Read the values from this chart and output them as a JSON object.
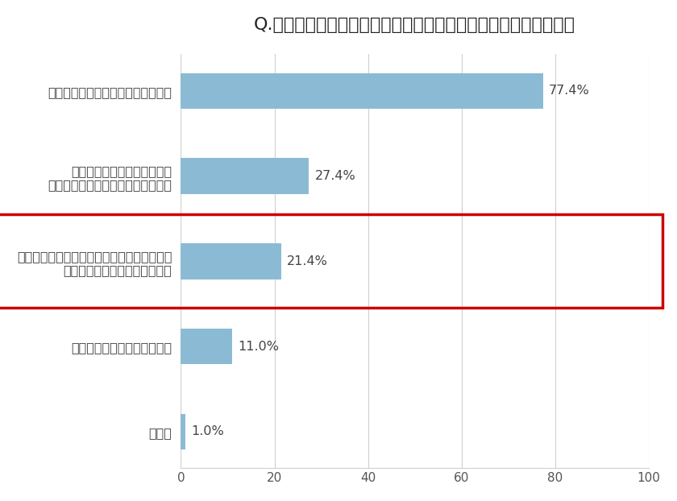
{
  "title": "Q.梅雨時期の食材購入について、あてはまることはありますか。",
  "categories": [
    "お店で購入後、すぐ帰るようにする",
    "購入した食材を持ち帰る際、\n保冷剤（保冷パック）を使っている",
    "雨の日は買い物に行かなくてもいいように、\nストックを多めに準備しておく",
    "生ものを購入する頻度が減る",
    "その他"
  ],
  "values": [
    77.4,
    27.4,
    21.4,
    11.0,
    1.0
  ],
  "labels": [
    "77.4%",
    "27.4%",
    "21.4%",
    "11.0%",
    "1.0%"
  ],
  "bar_color": "#8bbbd4",
  "highlight_index": 2,
  "highlight_color_border": "#cc0000",
  "xlim": [
    0,
    100
  ],
  "xticks": [
    0,
    20,
    40,
    60,
    80,
    100
  ],
  "background_color": "#ffffff",
  "title_fontsize": 16,
  "label_fontsize": 11.5,
  "tick_fontsize": 11,
  "bar_height": 0.42
}
